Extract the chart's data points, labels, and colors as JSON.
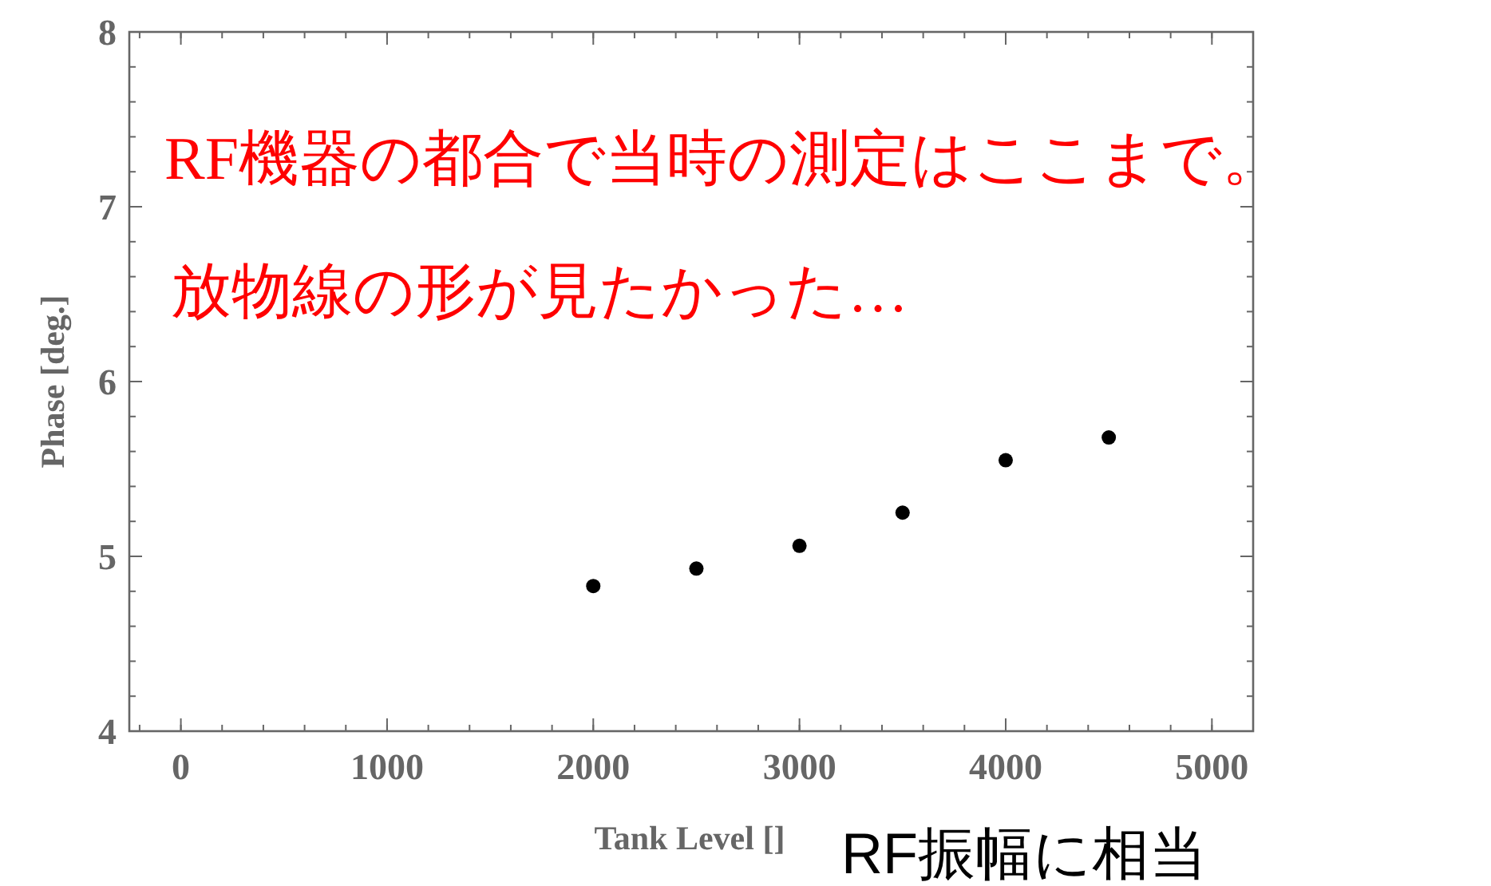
{
  "chart_data": {
    "type": "scatter",
    "xlabel": "Tank Level []",
    "ylabel": "Phase [deg.]",
    "x": [
      2000,
      2500,
      3000,
      3500,
      4000,
      4500
    ],
    "series": [
      {
        "color": "#000000",
        "values": [
          4.83,
          4.93,
          5.06,
          5.25,
          5.55,
          5.68
        ]
      }
    ],
    "xlim": [
      -250,
      5200
    ],
    "xticks": [
      0,
      1000,
      2000,
      3000,
      4000,
      5000
    ],
    "ylim": [
      4,
      8
    ],
    "yticks": [
      4,
      5,
      6,
      7,
      8
    ],
    "marker": "circle",
    "annotations": [
      "RF機器の都合で当時の測定はここまで。",
      "放物線の形が見たかった…",
      "RF振幅に相当"
    ]
  }
}
